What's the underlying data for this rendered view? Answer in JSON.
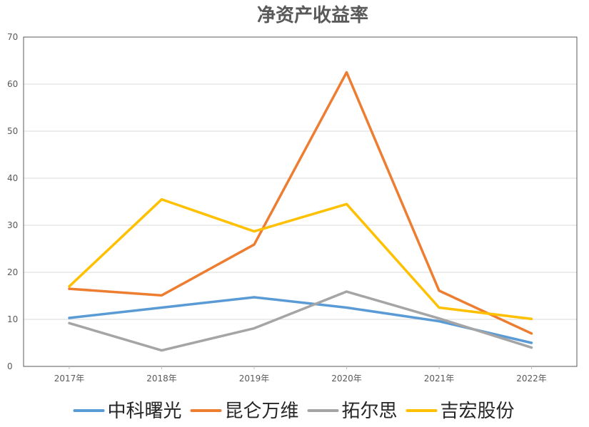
{
  "chart_data": {
    "type": "line",
    "title": "净资产收益率",
    "xlabel": "",
    "ylabel": "",
    "categories": [
      "2017年",
      "2018年",
      "2019年",
      "2020年",
      "2021年",
      "2022年"
    ],
    "ylim": [
      0,
      70
    ],
    "yticks": [
      0,
      10,
      20,
      30,
      40,
      50,
      60,
      70
    ],
    "grid": true,
    "legend_position": "bottom",
    "series": [
      {
        "name": "中科曙光",
        "color": "#5B9BD5",
        "values": [
          10.3,
          12.5,
          14.7,
          12.5,
          9.6,
          5.0
        ]
      },
      {
        "name": "昆仑万维",
        "color": "#ED7D31",
        "values": [
          16.5,
          15.1,
          25.9,
          62.5,
          16.1,
          7.0
        ]
      },
      {
        "name": "拓尔思",
        "color": "#A5A5A5",
        "values": [
          9.2,
          3.4,
          8.1,
          15.9,
          10.2,
          4.0
        ]
      },
      {
        "name": "吉宏股份",
        "color": "#FFC000",
        "values": [
          17.0,
          35.5,
          28.7,
          34.5,
          12.5,
          10.1
        ]
      }
    ]
  }
}
